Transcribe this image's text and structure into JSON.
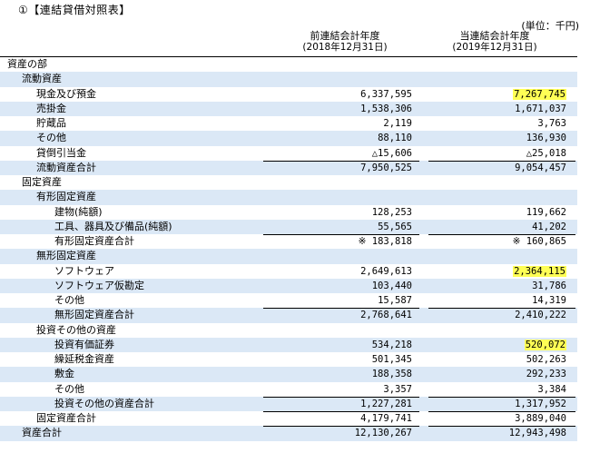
{
  "title": "①【連結貸借対照表】",
  "unit": "(単位：千円)",
  "columns": {
    "prev": {
      "label": "前連結会計年度",
      "date": "(2018年12月31日)"
    },
    "curr": {
      "label": "当連結会計年度",
      "date": "(2019年12月31日)"
    }
  },
  "highlight_color": "#ffff55",
  "row_shade_color": "#dbe8f6",
  "rows": [
    {
      "label": "資産の部",
      "prev": "",
      "curr": ""
    },
    {
      "label": "流動資産",
      "prev": "",
      "curr": ""
    },
    {
      "label": "現金及び預金",
      "prev": "6,337,595",
      "curr": "7,267,745",
      "highlight": true
    },
    {
      "label": "売掛金",
      "prev": "1,538,306",
      "curr": "1,671,037"
    },
    {
      "label": "貯蔵品",
      "prev": "2,119",
      "curr": "3,763"
    },
    {
      "label": "その他",
      "prev": "88,110",
      "curr": "136,930"
    },
    {
      "label": "貸倒引当金",
      "prev": "△15,606",
      "curr": "△25,018"
    },
    {
      "label": "流動資産合計",
      "prev": "7,950,525",
      "curr": "9,054,457"
    },
    {
      "label": "固定資産",
      "prev": "",
      "curr": ""
    },
    {
      "label": "有形固定資産",
      "prev": "",
      "curr": ""
    },
    {
      "label": "建物(純額)",
      "prev": "128,253",
      "curr": "119,662"
    },
    {
      "label": "工具、器具及び備品(純額)",
      "prev": "55,565",
      "curr": "41,202"
    },
    {
      "label": "有形固定資産合計",
      "prev": "※ 183,818",
      "curr": "※ 160,865"
    },
    {
      "label": "無形固定資産",
      "prev": "",
      "curr": ""
    },
    {
      "label": "ソフトウェア",
      "prev": "2,649,613",
      "curr": "2,364,115",
      "highlight": true
    },
    {
      "label": "ソフトウェア仮勘定",
      "prev": "103,440",
      "curr": "31,786"
    },
    {
      "label": "その他",
      "prev": "15,587",
      "curr": "14,319"
    },
    {
      "label": "無形固定資産合計",
      "prev": "2,768,641",
      "curr": "2,410,222"
    },
    {
      "label": "投資その他の資産",
      "prev": "",
      "curr": ""
    },
    {
      "label": "投資有価証券",
      "prev": "534,218",
      "curr": "520,072",
      "highlight": true
    },
    {
      "label": "繰延税金資産",
      "prev": "501,345",
      "curr": "502,263"
    },
    {
      "label": "敷金",
      "prev": "188,358",
      "curr": "292,233"
    },
    {
      "label": "その他",
      "prev": "3,357",
      "curr": "3,384"
    },
    {
      "label": "投資その他の資産合計",
      "prev": "1,227,281",
      "curr": "1,317,952"
    },
    {
      "label": "固定資産合計",
      "prev": "4,179,741",
      "curr": "3,889,040"
    },
    {
      "label": "資産合計",
      "prev": "12,130,267",
      "curr": "12,943,498"
    }
  ]
}
